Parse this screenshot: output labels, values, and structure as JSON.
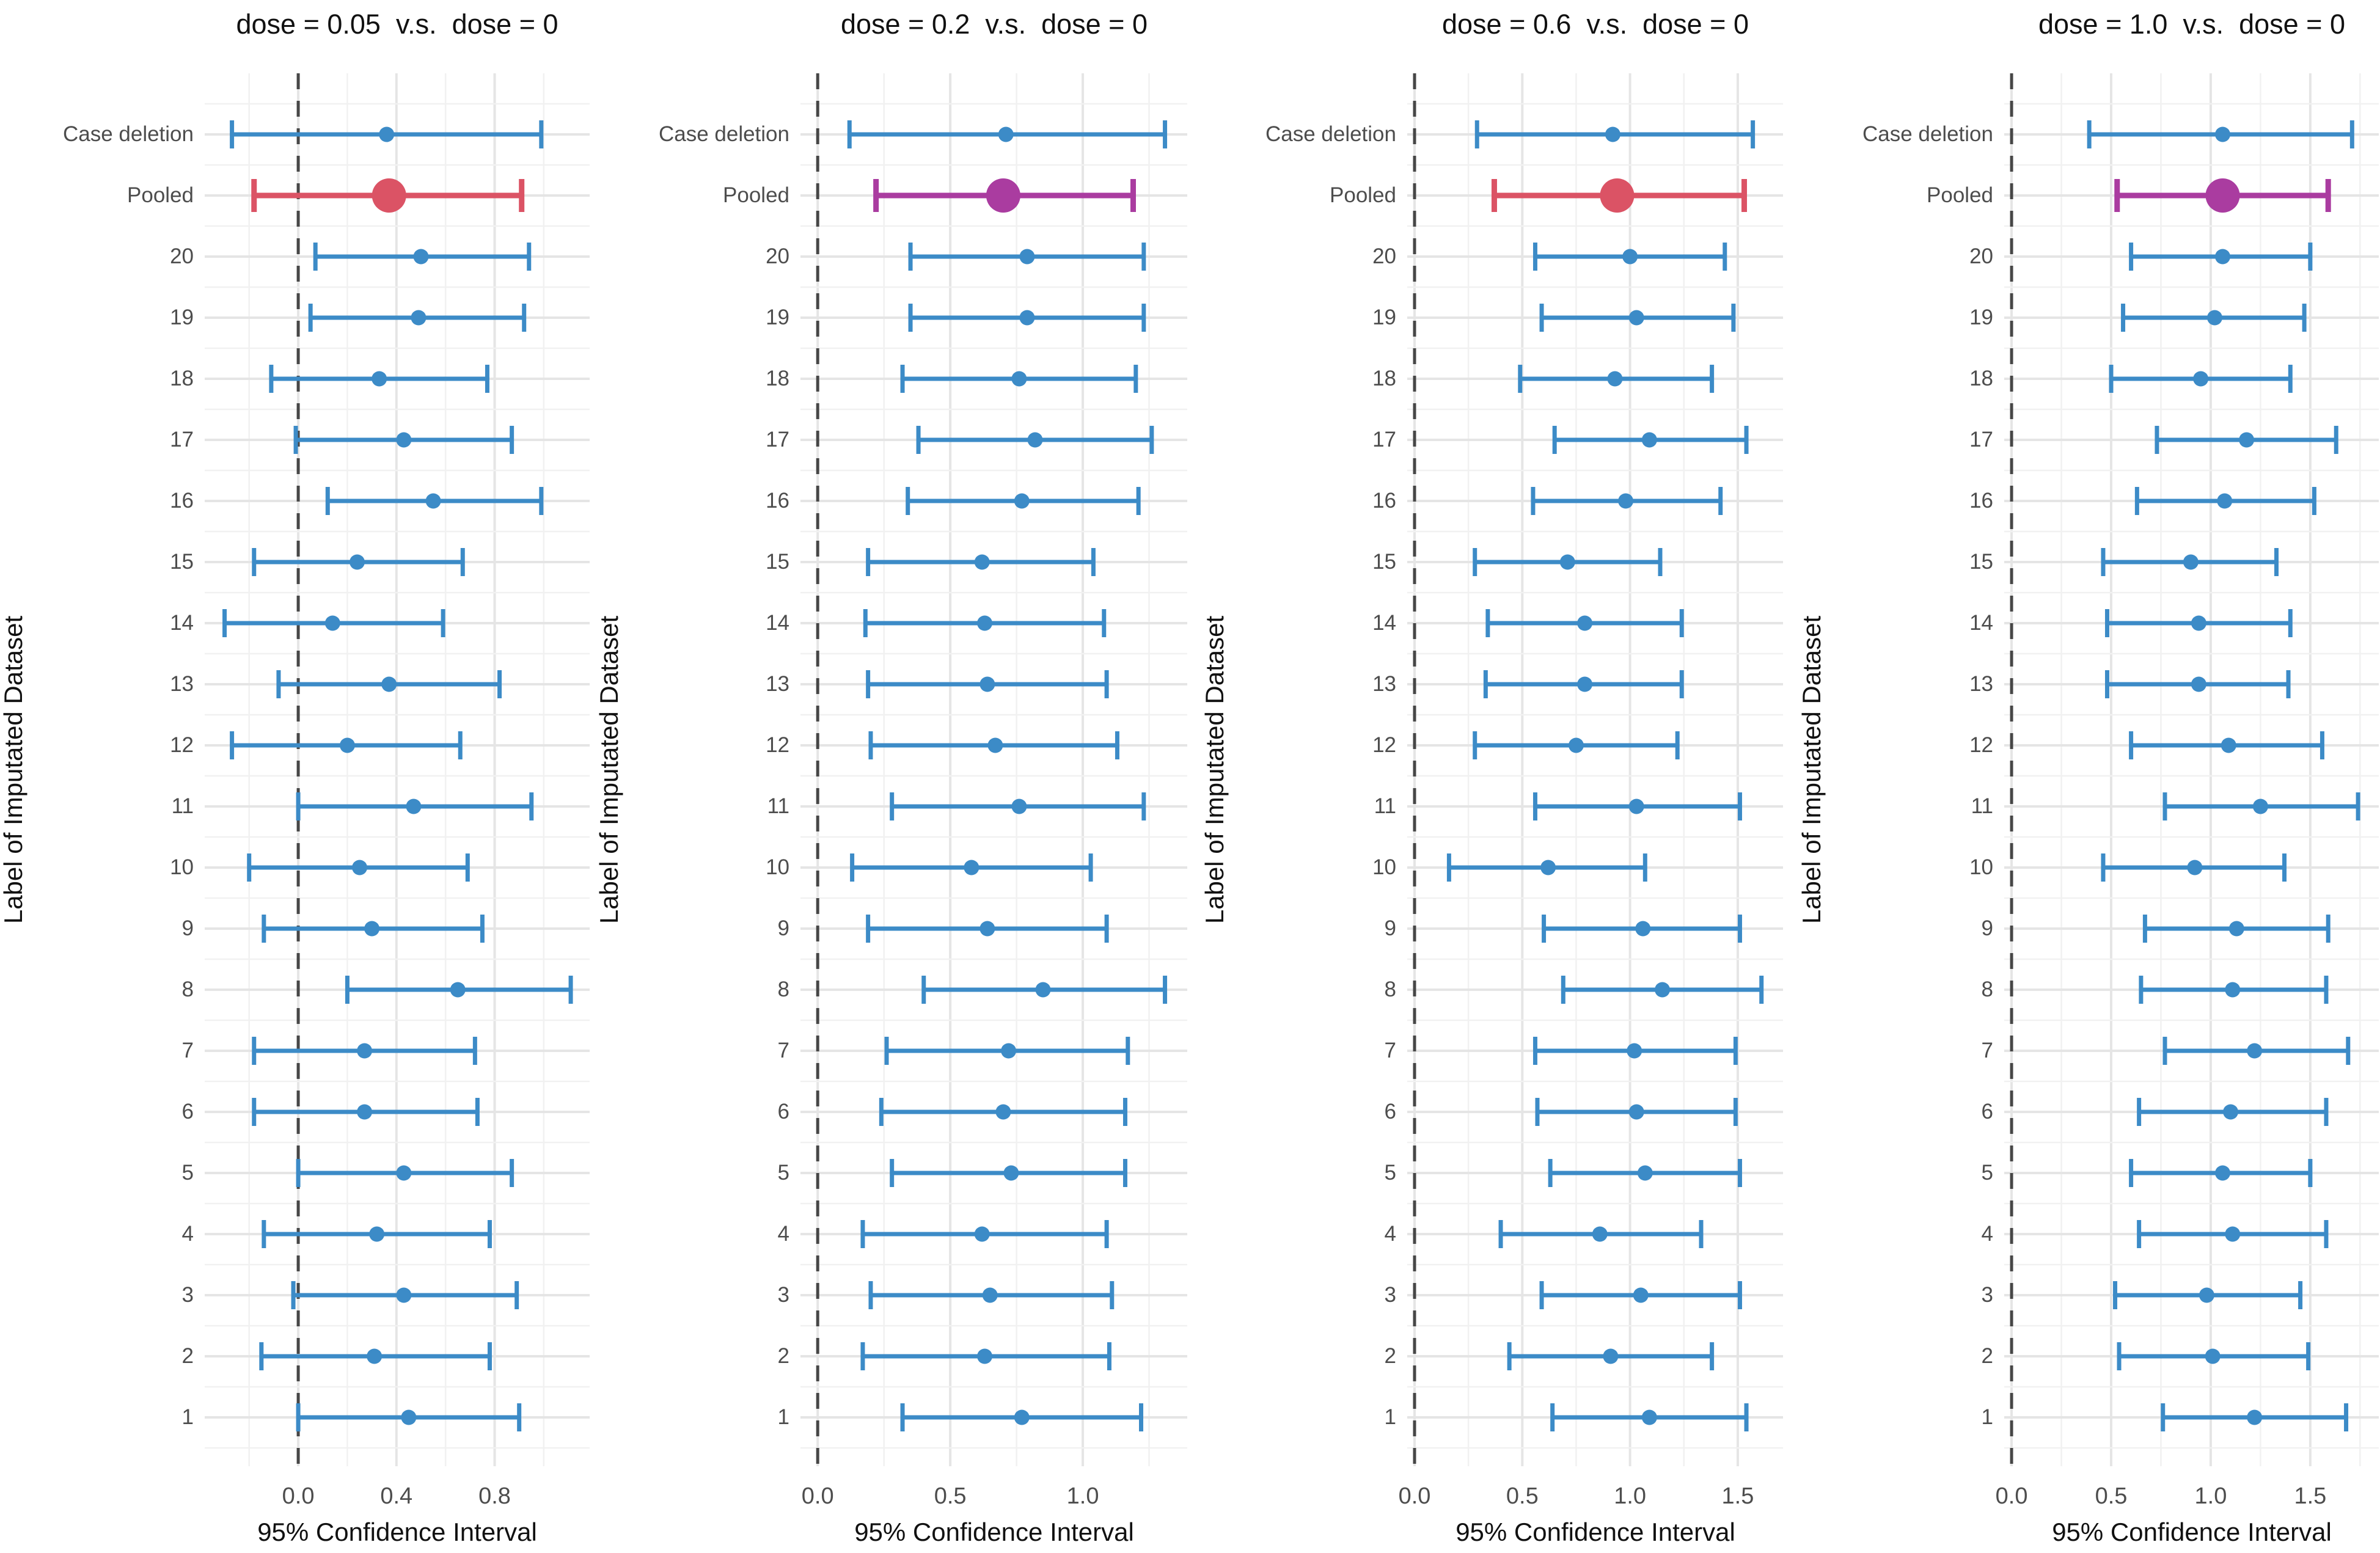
{
  "figure": {
    "y_axis_title": "Label of Imputated Dataset",
    "x_axis_title": "95% Confidence Interval",
    "row_labels": [
      "Case deletion",
      "Pooled",
      "20",
      "19",
      "18",
      "17",
      "16",
      "15",
      "14",
      "13",
      "12",
      "11",
      "10",
      "9",
      "8",
      "7",
      "6",
      "5",
      "4",
      "3",
      "2",
      "1"
    ]
  },
  "colors": {
    "ci_blue": "#3C8BC7",
    "pooled_crimson": "#DB5365",
    "pooled_magenta": "#AA3CA0",
    "grid_major": "#e5e5e5",
    "grid_minor": "#f1f1f1",
    "zero_line": "#474747",
    "tick_text": "#4d4d4d",
    "background": "#ffffff"
  },
  "chart_data": [
    {
      "type": "scatter",
      "subtype": "forest-ci",
      "title": "dose = 0.05  v.s.  dose = 0",
      "xlabel": "95% Confidence Interval",
      "ylabel": "Label of Imputated Dataset",
      "xlim": [
        -0.381,
        1.187
      ],
      "xticks": [
        0.0,
        0.4,
        0.8
      ],
      "xtick_labels": [
        "0.0",
        "0.4",
        "0.8"
      ],
      "minor_step": 0.2,
      "zero_line": 0,
      "grid": true,
      "pooled_color": "#DB5365",
      "rows": [
        {
          "label": "Case deletion",
          "low": -0.27,
          "est": 0.36,
          "high": 0.99
        },
        {
          "label": "Pooled",
          "low": -0.18,
          "est": 0.37,
          "high": 0.91
        },
        {
          "label": "20",
          "low": 0.07,
          "est": 0.5,
          "high": 0.94
        },
        {
          "label": "19",
          "low": 0.05,
          "est": 0.49,
          "high": 0.92
        },
        {
          "label": "18",
          "low": -0.11,
          "est": 0.33,
          "high": 0.77
        },
        {
          "label": "17",
          "low": -0.01,
          "est": 0.43,
          "high": 0.87
        },
        {
          "label": "16",
          "low": 0.12,
          "est": 0.55,
          "high": 0.99
        },
        {
          "label": "15",
          "low": -0.18,
          "est": 0.24,
          "high": 0.67
        },
        {
          "label": "14",
          "low": -0.3,
          "est": 0.14,
          "high": 0.59
        },
        {
          "label": "13",
          "low": -0.08,
          "est": 0.37,
          "high": 0.82
        },
        {
          "label": "12",
          "low": -0.27,
          "est": 0.2,
          "high": 0.66
        },
        {
          "label": "11",
          "low": 0.0,
          "est": 0.47,
          "high": 0.95
        },
        {
          "label": "10",
          "low": -0.2,
          "est": 0.25,
          "high": 0.69
        },
        {
          "label": "9",
          "low": -0.14,
          "est": 0.3,
          "high": 0.75
        },
        {
          "label": "8",
          "low": 0.2,
          "est": 0.65,
          "high": 1.11
        },
        {
          "label": "7",
          "low": -0.18,
          "est": 0.27,
          "high": 0.72
        },
        {
          "label": "6",
          "low": -0.18,
          "est": 0.27,
          "high": 0.73
        },
        {
          "label": "5",
          "low": 0.0,
          "est": 0.43,
          "high": 0.87
        },
        {
          "label": "4",
          "low": -0.14,
          "est": 0.32,
          "high": 0.78
        },
        {
          "label": "3",
          "low": -0.02,
          "est": 0.43,
          "high": 0.89
        },
        {
          "label": "2",
          "low": -0.15,
          "est": 0.31,
          "high": 0.78
        },
        {
          "label": "1",
          "low": 0.0,
          "est": 0.45,
          "high": 0.9
        }
      ]
    },
    {
      "type": "scatter",
      "subtype": "forest-ci",
      "title": "dose = 0.2  v.s.  dose = 0",
      "xlabel": "95% Confidence Interval",
      "ylabel": "Label of Imputated Dataset",
      "xlim": [
        -0.065,
        1.394
      ],
      "xticks": [
        0.0,
        0.5,
        1.0
      ],
      "xtick_labels": [
        "0.0",
        "0.5",
        "1.0"
      ],
      "minor_step": 0.25,
      "zero_line": 0,
      "grid": true,
      "pooled_color": "#AA3CA0",
      "rows": [
        {
          "label": "Case deletion",
          "low": 0.12,
          "est": 0.71,
          "high": 1.31
        },
        {
          "label": "Pooled",
          "low": 0.22,
          "est": 0.7,
          "high": 1.19
        },
        {
          "label": "20",
          "low": 0.35,
          "est": 0.79,
          "high": 1.23
        },
        {
          "label": "19",
          "low": 0.35,
          "est": 0.79,
          "high": 1.23
        },
        {
          "label": "18",
          "low": 0.32,
          "est": 0.76,
          "high": 1.2
        },
        {
          "label": "17",
          "low": 0.38,
          "est": 0.82,
          "high": 1.26
        },
        {
          "label": "16",
          "low": 0.34,
          "est": 0.77,
          "high": 1.21
        },
        {
          "label": "15",
          "low": 0.19,
          "est": 0.62,
          "high": 1.04
        },
        {
          "label": "14",
          "low": 0.18,
          "est": 0.63,
          "high": 1.08
        },
        {
          "label": "13",
          "low": 0.19,
          "est": 0.64,
          "high": 1.09
        },
        {
          "label": "12",
          "low": 0.2,
          "est": 0.67,
          "high": 1.13
        },
        {
          "label": "11",
          "low": 0.28,
          "est": 0.76,
          "high": 1.23
        },
        {
          "label": "10",
          "low": 0.13,
          "est": 0.58,
          "high": 1.03
        },
        {
          "label": "9",
          "low": 0.19,
          "est": 0.64,
          "high": 1.09
        },
        {
          "label": "8",
          "low": 0.4,
          "est": 0.85,
          "high": 1.31
        },
        {
          "label": "7",
          "low": 0.26,
          "est": 0.72,
          "high": 1.17
        },
        {
          "label": "6",
          "low": 0.24,
          "est": 0.7,
          "high": 1.16
        },
        {
          "label": "5",
          "low": 0.28,
          "est": 0.73,
          "high": 1.16
        },
        {
          "label": "4",
          "low": 0.17,
          "est": 0.62,
          "high": 1.09
        },
        {
          "label": "3",
          "low": 0.2,
          "est": 0.65,
          "high": 1.11
        },
        {
          "label": "2",
          "low": 0.17,
          "est": 0.63,
          "high": 1.1
        },
        {
          "label": "1",
          "low": 0.32,
          "est": 0.77,
          "high": 1.22
        }
      ]
    },
    {
      "type": "scatter",
      "subtype": "forest-ci",
      "title": "dose = 0.6  v.s.  dose = 0",
      "xlabel": "95% Confidence Interval",
      "ylabel": "Label of Imputated Dataset",
      "xlim": [
        -0.034,
        1.71
      ],
      "xticks": [
        0.0,
        0.5,
        1.0,
        1.5
      ],
      "xtick_labels": [
        "0.0",
        "0.5",
        "1.0",
        "1.5"
      ],
      "minor_step": 0.25,
      "zero_line": 0,
      "grid": true,
      "pooled_color": "#DB5365",
      "rows": [
        {
          "label": "Case deletion",
          "low": 0.29,
          "est": 0.92,
          "high": 1.57
        },
        {
          "label": "Pooled",
          "low": 0.37,
          "est": 0.94,
          "high": 1.53
        },
        {
          "label": "20",
          "low": 0.56,
          "est": 1.0,
          "high": 1.44
        },
        {
          "label": "19",
          "low": 0.59,
          "est": 1.03,
          "high": 1.48
        },
        {
          "label": "18",
          "low": 0.49,
          "est": 0.93,
          "high": 1.38
        },
        {
          "label": "17",
          "low": 0.65,
          "est": 1.09,
          "high": 1.54
        },
        {
          "label": "16",
          "low": 0.55,
          "est": 0.98,
          "high": 1.42
        },
        {
          "label": "15",
          "low": 0.28,
          "est": 0.71,
          "high": 1.14
        },
        {
          "label": "14",
          "low": 0.34,
          "est": 0.79,
          "high": 1.24
        },
        {
          "label": "13",
          "low": 0.33,
          "est": 0.79,
          "high": 1.24
        },
        {
          "label": "12",
          "low": 0.28,
          "est": 0.75,
          "high": 1.22
        },
        {
          "label": "11",
          "low": 0.56,
          "est": 1.03,
          "high": 1.51
        },
        {
          "label": "10",
          "low": 0.16,
          "est": 0.62,
          "high": 1.07
        },
        {
          "label": "9",
          "low": 0.6,
          "est": 1.06,
          "high": 1.51
        },
        {
          "label": "8",
          "low": 0.69,
          "est": 1.15,
          "high": 1.61
        },
        {
          "label": "7",
          "low": 0.56,
          "est": 1.02,
          "high": 1.49
        },
        {
          "label": "6",
          "low": 0.57,
          "est": 1.03,
          "high": 1.49
        },
        {
          "label": "5",
          "low": 0.63,
          "est": 1.07,
          "high": 1.51
        },
        {
          "label": "4",
          "low": 0.4,
          "est": 0.86,
          "high": 1.33
        },
        {
          "label": "3",
          "low": 0.59,
          "est": 1.05,
          "high": 1.51
        },
        {
          "label": "2",
          "low": 0.44,
          "est": 0.91,
          "high": 1.38
        },
        {
          "label": "1",
          "low": 0.64,
          "est": 1.09,
          "high": 1.54
        }
      ]
    },
    {
      "type": "scatter",
      "subtype": "forest-ci",
      "title": "dose = 1.0  v.s.  dose = 0",
      "xlabel": "95% Confidence Interval",
      "ylabel": "Label of Imputated Dataset",
      "xlim": [
        -0.037,
        1.844
      ],
      "xticks": [
        0.0,
        0.5,
        1.0,
        1.5
      ],
      "xtick_labels": [
        "0.0",
        "0.5",
        "1.0",
        "1.5"
      ],
      "minor_step": 0.25,
      "zero_line": 0,
      "grid": true,
      "pooled_color": "#AA3CA0",
      "rows": [
        {
          "label": "Case deletion",
          "low": 0.39,
          "est": 1.06,
          "high": 1.71
        },
        {
          "label": "Pooled",
          "low": 0.53,
          "est": 1.06,
          "high": 1.59
        },
        {
          "label": "20",
          "low": 0.6,
          "est": 1.06,
          "high": 1.5
        },
        {
          "label": "19",
          "low": 0.56,
          "est": 1.02,
          "high": 1.47
        },
        {
          "label": "18",
          "low": 0.5,
          "est": 0.95,
          "high": 1.4
        },
        {
          "label": "17",
          "low": 0.73,
          "est": 1.18,
          "high": 1.63
        },
        {
          "label": "16",
          "low": 0.63,
          "est": 1.07,
          "high": 1.52
        },
        {
          "label": "15",
          "low": 0.46,
          "est": 0.9,
          "high": 1.33
        },
        {
          "label": "14",
          "low": 0.48,
          "est": 0.94,
          "high": 1.4
        },
        {
          "label": "13",
          "low": 0.48,
          "est": 0.94,
          "high": 1.39
        },
        {
          "label": "12",
          "low": 0.6,
          "est": 1.09,
          "high": 1.56
        },
        {
          "label": "11",
          "low": 0.77,
          "est": 1.25,
          "high": 1.74
        },
        {
          "label": "10",
          "low": 0.46,
          "est": 0.92,
          "high": 1.37
        },
        {
          "label": "9",
          "low": 0.67,
          "est": 1.13,
          "high": 1.59
        },
        {
          "label": "8",
          "low": 0.65,
          "est": 1.11,
          "high": 1.58
        },
        {
          "label": "7",
          "low": 0.77,
          "est": 1.22,
          "high": 1.69
        },
        {
          "label": "6",
          "low": 0.64,
          "est": 1.1,
          "high": 1.58
        },
        {
          "label": "5",
          "low": 0.6,
          "est": 1.06,
          "high": 1.5
        },
        {
          "label": "4",
          "low": 0.64,
          "est": 1.11,
          "high": 1.58
        },
        {
          "label": "3",
          "low": 0.52,
          "est": 0.98,
          "high": 1.45
        },
        {
          "label": "2",
          "low": 0.54,
          "est": 1.01,
          "high": 1.49
        },
        {
          "label": "1",
          "low": 0.76,
          "est": 1.22,
          "high": 1.68
        }
      ]
    }
  ]
}
